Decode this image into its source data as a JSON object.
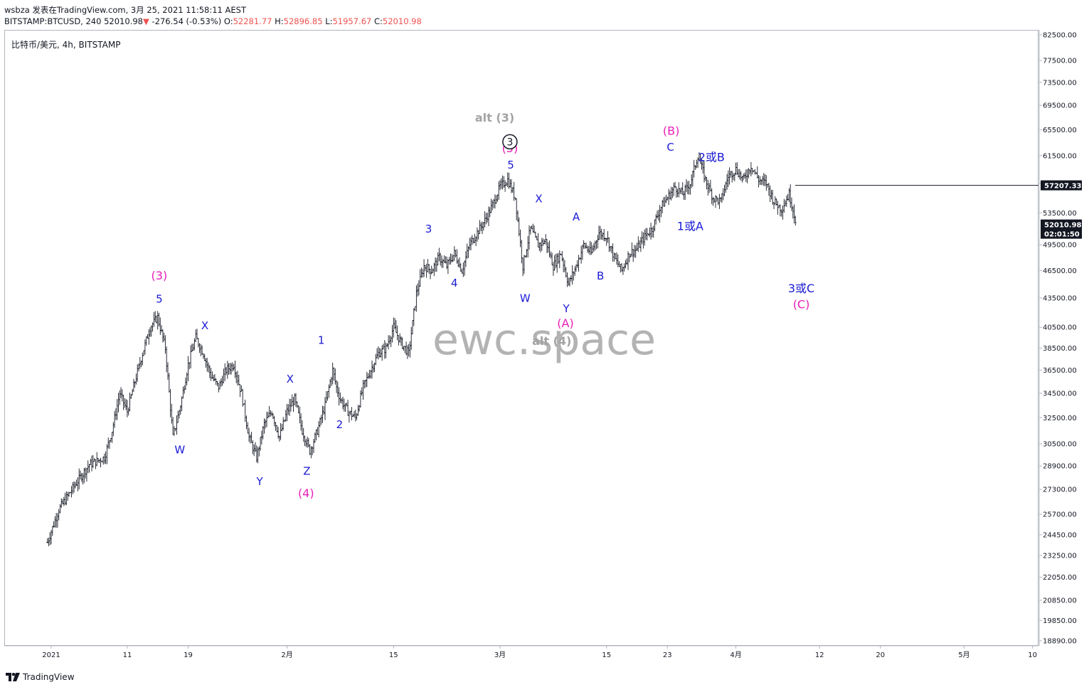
{
  "header": {
    "line1": "wsbza 发表在TradingView.com, 3月 25, 2021 11:58:11 AEST",
    "symbol": "BITSTAMP:BTCUSD, 240",
    "last": "52010.98",
    "change_arrow": "▼",
    "change": "-276.54 (-0.53%)",
    "o_label": "O:",
    "o": "52281.77",
    "h_label": "H:",
    "h": "52896.85",
    "l_label": "L:",
    "l": "51957.67",
    "c_label": "C:",
    "c": "52010.98"
  },
  "chart_label": "比特币/美元, 4h, BITSTAMP",
  "watermark": "ewc.space",
  "footer": {
    "brand": "TradingView"
  },
  "price_tags": [
    {
      "value": "57207.33",
      "bg": "#131722"
    },
    {
      "value": "52010.98",
      "bg": "#131722"
    },
    {
      "value": "02:01:50",
      "bg": "#131722"
    }
  ],
  "chart_data": {
    "type": "ohlc-bar",
    "y_scale": "log",
    "ylim": [
      18890,
      82500
    ],
    "y_ticks": [
      82500,
      77500,
      73500,
      69500,
      65500,
      61500,
      57500,
      53500,
      49500,
      46500,
      43500,
      40500,
      38500,
      36500,
      34500,
      32500,
      30500,
      28900,
      27300,
      25700,
      24450,
      23250,
      22050,
      20850,
      19850,
      18890
    ],
    "y_tick_labels": [
      "82500.00",
      "77500.00",
      "73500.00",
      "69500.00",
      "65500.00",
      "61500.00",
      "57500.00",
      "53500.00",
      "49500.00",
      "46500.00",
      "43500.00",
      "40500.00",
      "38500.00",
      "36500.00",
      "34500.00",
      "32500.00",
      "30500.00",
      "28900.00",
      "27300.00",
      "25700.00",
      "24450.00",
      "23250.00",
      "22050.00",
      "20850.00",
      "19850.00",
      "18890.00"
    ],
    "x_ticks": [
      {
        "label": "2021",
        "day": 1
      },
      {
        "label": "11",
        "day": 11
      },
      {
        "label": "19",
        "day": 19
      },
      {
        "label": "2月",
        "day": 32
      },
      {
        "label": "15",
        "day": 46
      },
      {
        "label": "3月",
        "day": 60
      },
      {
        "label": "15",
        "day": 74
      },
      {
        "label": "23",
        "day": 82
      },
      {
        "label": "4月",
        "day": 91
      },
      {
        "label": "12",
        "day": 102
      },
      {
        "label": "20",
        "day": 110
      },
      {
        "label": "5月",
        "day": 121
      },
      {
        "label": "10",
        "day": 130
      }
    ],
    "path_points": [
      [
        0.5,
        24000
      ],
      [
        2,
        26000
      ],
      [
        4,
        27500
      ],
      [
        6,
        29000
      ],
      [
        8,
        29500
      ],
      [
        9,
        31500
      ],
      [
        10,
        34500
      ],
      [
        11,
        33000
      ],
      [
        12,
        35500
      ],
      [
        13,
        38000
      ],
      [
        14,
        40500
      ],
      [
        15,
        41500
      ],
      [
        16,
        38500
      ],
      [
        17,
        31000
      ],
      [
        18,
        33500
      ],
      [
        19,
        37000
      ],
      [
        20,
        39500
      ],
      [
        21,
        38000
      ],
      [
        22,
        36000
      ],
      [
        23,
        35000
      ],
      [
        24,
        36500
      ],
      [
        25,
        37000
      ],
      [
        26,
        34500
      ],
      [
        27,
        31000
      ],
      [
        28,
        29500
      ],
      [
        29,
        32000
      ],
      [
        30,
        33000
      ],
      [
        31,
        31000
      ],
      [
        32,
        33000
      ],
      [
        33,
        34000
      ],
      [
        34,
        31500
      ],
      [
        35,
        30000
      ],
      [
        36,
        31500
      ],
      [
        37,
        33500
      ],
      [
        38,
        36500
      ],
      [
        38.5,
        35000
      ],
      [
        39,
        34000
      ],
      [
        40,
        33000
      ],
      [
        41,
        32500
      ],
      [
        42,
        35000
      ],
      [
        43,
        36500
      ],
      [
        44,
        38000
      ],
      [
        45,
        38500
      ],
      [
        46,
        40500
      ],
      [
        47,
        39000
      ],
      [
        48,
        38000
      ],
      [
        49,
        44000
      ],
      [
        50,
        47000
      ],
      [
        51,
        46500
      ],
      [
        52,
        48000
      ],
      [
        53,
        47000
      ],
      [
        54,
        48500
      ],
      [
        55,
        46500
      ],
      [
        56,
        49500
      ],
      [
        57,
        51000
      ],
      [
        58,
        52500
      ],
      [
        59,
        54500
      ],
      [
        60,
        57000
      ],
      [
        61,
        58000
      ],
      [
        62,
        55500
      ],
      [
        63,
        47000
      ],
      [
        64,
        51500
      ],
      [
        65,
        49500
      ],
      [
        66,
        50000
      ],
      [
        67,
        47000
      ],
      [
        68,
        48500
      ],
      [
        69,
        45000
      ],
      [
        70,
        47000
      ],
      [
        71,
        49500
      ],
      [
        72,
        48500
      ],
      [
        73,
        51000
      ],
      [
        74,
        50500
      ],
      [
        75,
        48000
      ],
      [
        76,
        46500
      ],
      [
        77,
        48500
      ],
      [
        78,
        49000
      ],
      [
        79,
        50500
      ],
      [
        80,
        51500
      ],
      [
        81,
        54000
      ],
      [
        82,
        55500
      ],
      [
        83,
        57000
      ],
      [
        84,
        56000
      ],
      [
        85,
        57500
      ],
      [
        86,
        61500
      ],
      [
        87,
        58000
      ],
      [
        88,
        55500
      ],
      [
        89,
        55000
      ],
      [
        90,
        58500
      ],
      [
        91,
        59500
      ],
      [
        92,
        58000
      ],
      [
        93,
        60000
      ],
      [
        94,
        58000
      ],
      [
        95,
        57500
      ],
      [
        96,
        55000
      ],
      [
        97,
        54000
      ],
      [
        98,
        56000
      ],
      [
        99,
        52000
      ]
    ],
    "last_price_line": 57207.33,
    "wave_labels": [
      {
        "text": "(3)",
        "day": 15.2,
        "price": 45500,
        "color": "#e91eb8"
      },
      {
        "text": "5",
        "day": 15.2,
        "price": 43000,
        "color": "#1a1ad6"
      },
      {
        "text": "W",
        "day": 17.9,
        "price": 29800,
        "color": "#1a1ad6"
      },
      {
        "text": "X",
        "day": 21.2,
        "price": 40300,
        "color": "#1a1ad6"
      },
      {
        "text": "Y",
        "day": 28.4,
        "price": 27600,
        "color": "#1a1ad6"
      },
      {
        "text": "X",
        "day": 32.4,
        "price": 35400,
        "color": "#1a1ad6"
      },
      {
        "text": "Z",
        "day": 34.6,
        "price": 28300,
        "color": "#1a1ad6"
      },
      {
        "text": "(4)",
        "day": 34.5,
        "price": 26800,
        "color": "#e91eb8"
      },
      {
        "text": "1",
        "day": 36.5,
        "price": 38900,
        "color": "#1a1ad6"
      },
      {
        "text": "2",
        "day": 38.9,
        "price": 31700,
        "color": "#1a1ad6"
      },
      {
        "text": "3",
        "day": 50.6,
        "price": 51000,
        "color": "#1a1ad6"
      },
      {
        "text": "4",
        "day": 54.0,
        "price": 44700,
        "color": "#1a1ad6"
      },
      {
        "text": "alt (3)",
        "day": 59.3,
        "price": 66800,
        "color": "#a3a3a3"
      },
      {
        "text": "(5)",
        "day": 61.3,
        "price": 62000,
        "color": "#e91eb8"
      },
      {
        "text": "5",
        "day": 61.4,
        "price": 59600,
        "color": "#1a1ad6"
      },
      {
        "text": "X",
        "day": 65.1,
        "price": 54900,
        "color": "#1a1ad6"
      },
      {
        "text": "W",
        "day": 63.3,
        "price": 43100,
        "color": "#1a1ad6"
      },
      {
        "text": "A",
        "day": 70.0,
        "price": 52500,
        "color": "#1a1ad6"
      },
      {
        "text": "Y",
        "day": 68.7,
        "price": 42000,
        "color": "#1a1ad6"
      },
      {
        "text": "(A)",
        "day": 68.6,
        "price": 40500,
        "color": "#e91eb8"
      },
      {
        "text": "alt (4)",
        "day": 66.8,
        "price": 38800,
        "color": "#a3a3a3"
      },
      {
        "text": "B",
        "day": 73.2,
        "price": 45500,
        "color": "#1a1ad6"
      },
      {
        "text": "(B)",
        "day": 82.5,
        "price": 64700,
        "color": "#e91eb8"
      },
      {
        "text": "C",
        "day": 82.4,
        "price": 62200,
        "color": "#1a1ad6"
      },
      {
        "text": "2或B",
        "day": 87.8,
        "price": 60700,
        "color": "#1a1ad6"
      },
      {
        "text": "1或A",
        "day": 85.0,
        "price": 51300,
        "color": "#1a1ad6"
      },
      {
        "text": "3或C",
        "day": 99.6,
        "price": 44100,
        "color": "#1a1ad6"
      },
      {
        "text": "(C)",
        "day": 99.6,
        "price": 42400,
        "color": "#e91eb8"
      }
    ],
    "circled_label": {
      "text": "3",
      "day": 61.3,
      "price": 63600,
      "color": "#131722"
    }
  }
}
